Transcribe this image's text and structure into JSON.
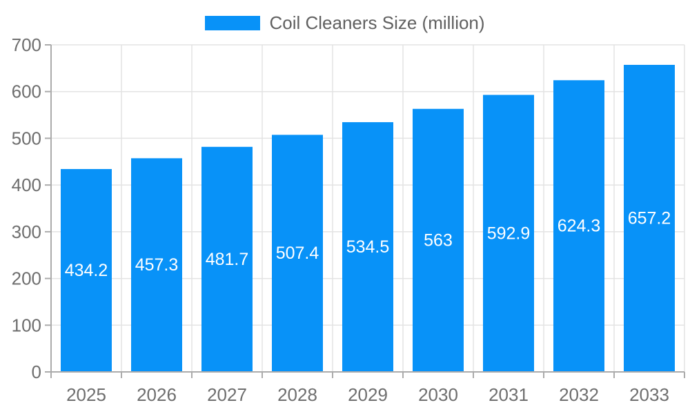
{
  "legend": {
    "label": "Coil Cleaners Size (million)"
  },
  "colors": {
    "bar": "#0892f8",
    "bar_label_text": "#ffffff",
    "axis_text": "#6e6e6e",
    "legend_text": "#606060",
    "grid_line": "#e3e3e3",
    "axis_line": "#ababab"
  },
  "chart_data": {
    "type": "bar",
    "title": "Coil Cleaners Size (million)",
    "categories": [
      "2025",
      "2026",
      "2027",
      "2028",
      "2029",
      "2030",
      "2031",
      "2032",
      "2033"
    ],
    "values": [
      434.2,
      457.3,
      481.7,
      507.4,
      534.5,
      563,
      592.9,
      624.3,
      657.2
    ],
    "value_labels": [
      "434.2",
      "457.3",
      "481.7",
      "507.4",
      "534.5",
      "563",
      "592.9",
      "624.3",
      "657.2"
    ],
    "xlabel": "",
    "ylabel": "",
    "ylim": [
      0,
      700
    ],
    "ytick_step": 100,
    "ytick_labels": [
      "0",
      "100",
      "200",
      "300",
      "400",
      "500",
      "600",
      "700"
    ],
    "grid": true,
    "legend_position": "top-center",
    "bar_labels_visible": true,
    "bar_label_position": "center-of-bar"
  }
}
